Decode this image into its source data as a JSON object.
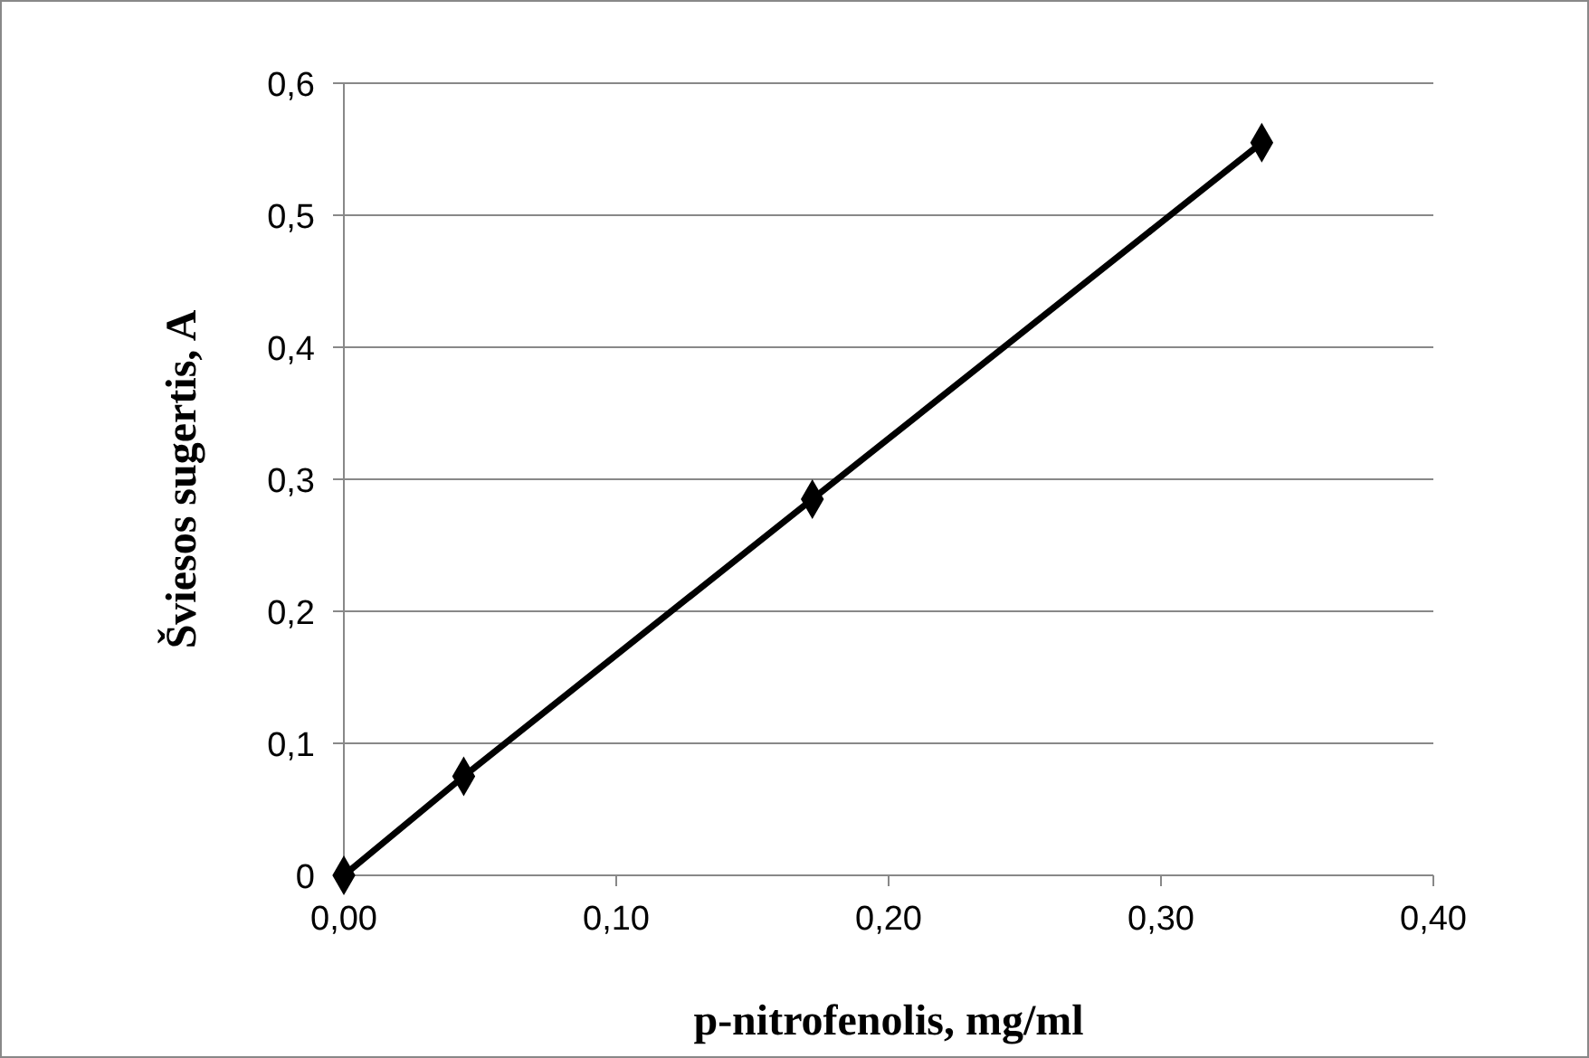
{
  "chart_data": {
    "type": "line",
    "xlabel": "p-nitrofenolis, mg/ml",
    "ylabel": "Šviesos sugertis, A",
    "x": [
      0,
      0.044,
      0.172,
      0.337
    ],
    "series": [
      {
        "color": "#000000",
        "values": [
          0,
          0.075,
          0.285,
          0.555
        ]
      }
    ],
    "xlim": [
      0,
      0.4
    ],
    "ylim": [
      0,
      0.6
    ],
    "xticks": [
      {
        "value": 0,
        "label": "0,00"
      },
      {
        "value": 0.1,
        "label": "0,10"
      },
      {
        "value": 0.2,
        "label": "0,20"
      },
      {
        "value": 0.3,
        "label": "0,30"
      },
      {
        "value": 0.4,
        "label": "0,40"
      }
    ],
    "yticks": [
      0,
      {
        "value": 0.1,
        "label": "0,1"
      },
      {
        "value": 0.2,
        "label": "0,2"
      },
      {
        "value": 0.3,
        "label": "0,3"
      },
      {
        "value": 0.4,
        "label": "0,4"
      },
      {
        "value": 0.5,
        "label": "0,5"
      },
      {
        "value": 0.6,
        "label": "0,6"
      }
    ],
    "grid": "y",
    "marker": "diamond",
    "line_style": "solid"
  }
}
